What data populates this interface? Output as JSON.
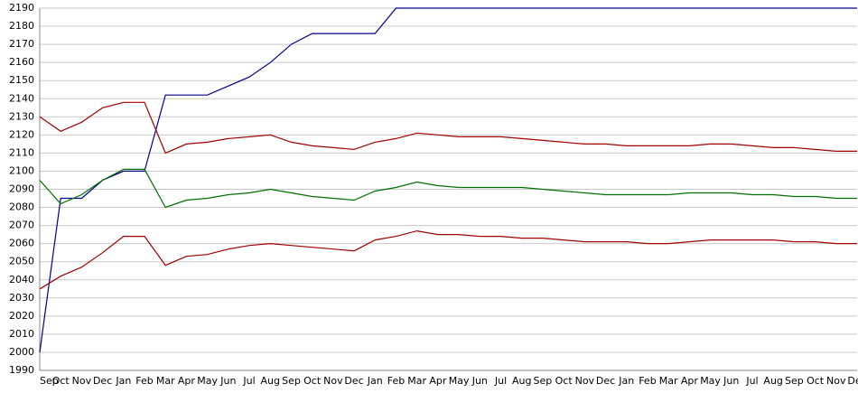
{
  "chart_data": {
    "type": "line",
    "categories": [
      "Sep",
      "Oct",
      "Nov",
      "Dec",
      "Jan",
      "Feb",
      "Mar",
      "Apr",
      "May",
      "Jun",
      "Jul",
      "Aug",
      "Sep",
      "Oct",
      "Nov",
      "Dec",
      "Jan",
      "Feb",
      "Mar",
      "Apr",
      "May",
      "Jun",
      "Jul",
      "Aug",
      "Sep",
      "Oct",
      "Nov",
      "Dec",
      "Jan",
      "Feb",
      "Mar",
      "Apr",
      "May",
      "Jun",
      "Jul",
      "Aug",
      "Sep",
      "Oct",
      "Nov",
      "Dec"
    ],
    "series": [
      {
        "color": "#00008b",
        "values": [
          2000,
          2085,
          2085,
          2095,
          2100,
          2100,
          2142,
          2142,
          2142,
          2147,
          2152,
          2160,
          2170,
          2176,
          2176,
          2176,
          2176,
          2190,
          2190,
          2190,
          2190,
          2190,
          2190,
          2190,
          2190,
          2190,
          2190,
          2190,
          2190,
          2190,
          2190,
          2190,
          2190,
          2190,
          2190,
          2190,
          2190,
          2190,
          2190,
          2190
        ]
      },
      {
        "color": "#a00000",
        "values": [
          2130,
          2122,
          2127,
          2135,
          2138,
          2138,
          2110,
          2115,
          2116,
          2118,
          2119,
          2120,
          2116,
          2114,
          2113,
          2112,
          2116,
          2118,
          2121,
          2120,
          2119,
          2119,
          2119,
          2118,
          2117,
          2116,
          2115,
          2115,
          2114,
          2114,
          2114,
          2114,
          2115,
          2115,
          2114,
          2113,
          2113,
          2112,
          2111,
          2111
        ]
      },
      {
        "color": "#007000",
        "values": [
          2095,
          2082,
          2087,
          2095,
          2101,
          2101,
          2080,
          2084,
          2085,
          2087,
          2088,
          2090,
          2088,
          2086,
          2085,
          2084,
          2089,
          2091,
          2094,
          2092,
          2091,
          2091,
          2091,
          2091,
          2090,
          2089,
          2088,
          2087,
          2087,
          2087,
          2087,
          2088,
          2088,
          2088,
          2087,
          2087,
          2086,
          2086,
          2085,
          2085
        ]
      },
      {
        "color": "#a00000",
        "values": [
          2035,
          2042,
          2047,
          2055,
          2064,
          2064,
          2048,
          2053,
          2054,
          2057,
          2059,
          2060,
          2059,
          2058,
          2057,
          2056,
          2062,
          2064,
          2067,
          2065,
          2065,
          2064,
          2064,
          2063,
          2063,
          2062,
          2061,
          2061,
          2061,
          2060,
          2060,
          2061,
          2062,
          2062,
          2062,
          2062,
          2061,
          2061,
          2060,
          2060
        ]
      }
    ],
    "ylim": [
      1990,
      2190
    ],
    "yticks": [
      1990,
      2000,
      2010,
      2020,
      2030,
      2040,
      2050,
      2060,
      2070,
      2080,
      2090,
      2100,
      2110,
      2120,
      2130,
      2140,
      2150,
      2160,
      2170,
      2180,
      2190
    ],
    "grid": true
  }
}
